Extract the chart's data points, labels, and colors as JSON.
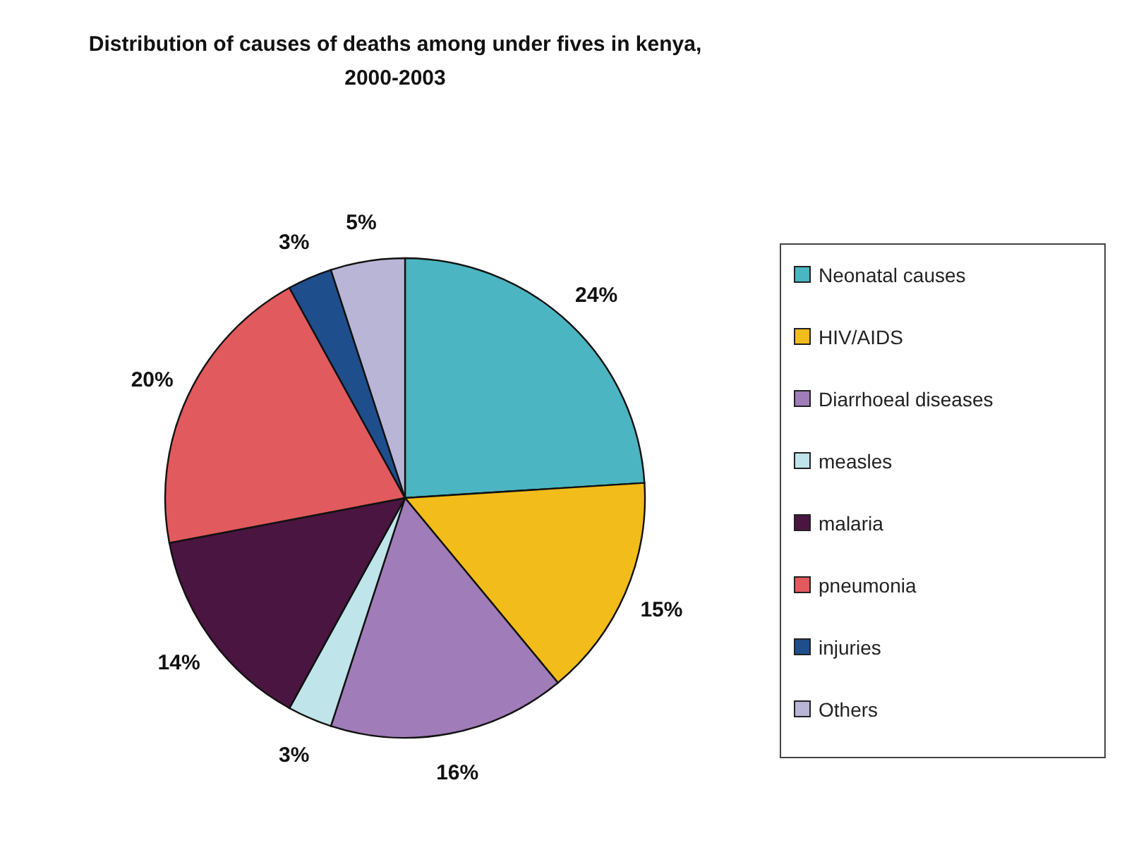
{
  "chart_data": {
    "type": "pie",
    "title": "Distribution of causes of deaths among under fives in kenya,\n2000-2003",
    "categories": [
      "Neonatal causes",
      "HIV/AIDS",
      "Diarrhoeal diseases",
      "measles",
      "malaria",
      "pneumonia",
      "injuries",
      "Others"
    ],
    "values": [
      24,
      15,
      16,
      3,
      14,
      20,
      3,
      5
    ],
    "colors": [
      "#4bb5c1",
      "#f2bc1a",
      "#a07cb8",
      "#bfe4ea",
      "#4a1540",
      "#e05a5e",
      "#1f4e8c",
      "#b8b5d6"
    ],
    "value_labels": [
      "24%",
      "15%",
      "16%",
      "3%",
      "14%",
      "20%",
      "3%",
      "5%"
    ],
    "legend": "right"
  }
}
